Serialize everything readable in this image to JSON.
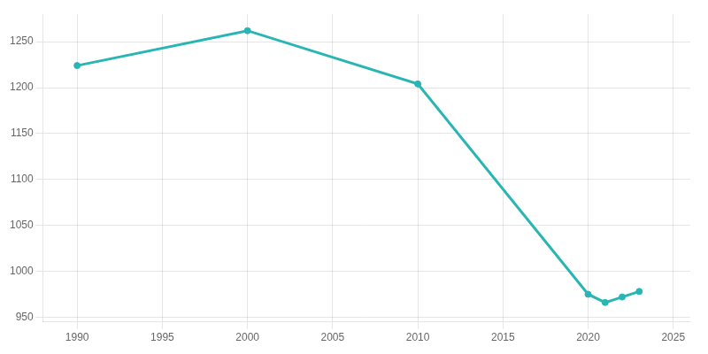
{
  "chart_data": {
    "type": "line",
    "x": [
      1990,
      2000,
      2010,
      2020,
      2021,
      2022,
      2023
    ],
    "values": [
      1224,
      1262,
      1204,
      975,
      966,
      972,
      978
    ],
    "color": "#2ab5b5",
    "marker": "circle",
    "xlim": [
      1988,
      2026
    ],
    "ylim": [
      945,
      1280
    ],
    "xticks": [
      1990,
      1995,
      2000,
      2005,
      2010,
      2015,
      2020,
      2025
    ],
    "yticks": [
      950,
      1000,
      1050,
      1100,
      1150,
      1200,
      1250
    ],
    "grid": true
  }
}
